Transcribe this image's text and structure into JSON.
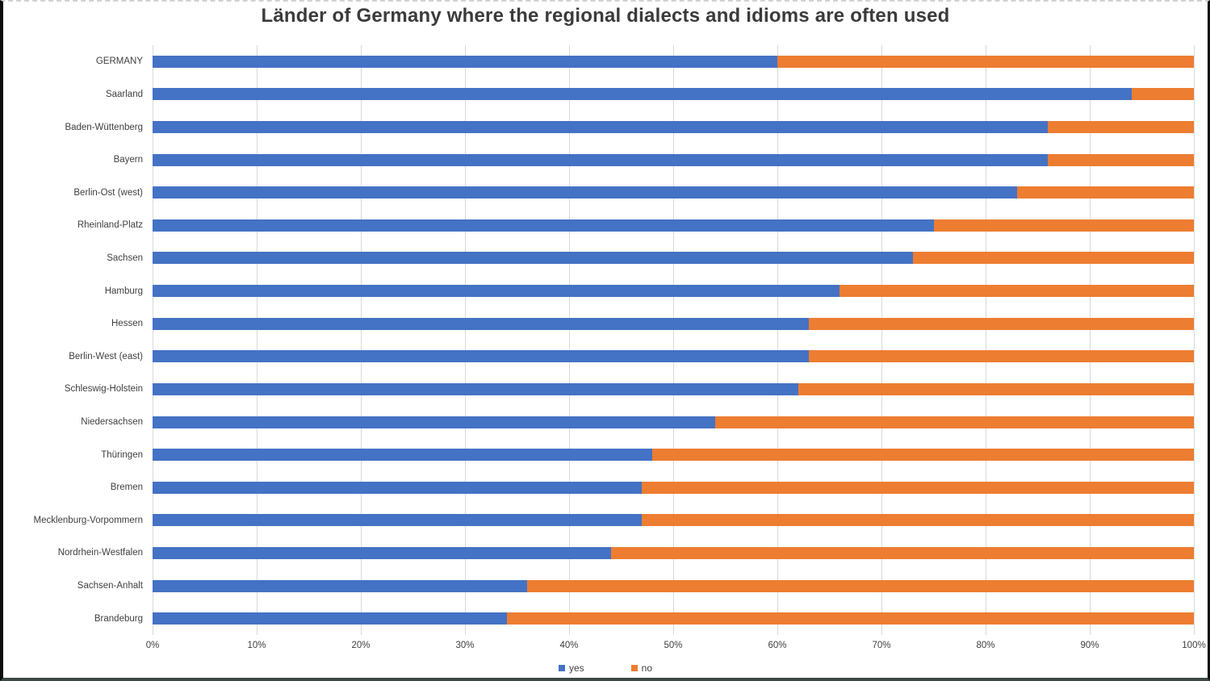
{
  "title": "Länder of Germany where the regional dialects and idioms are often used",
  "colors": {
    "yes": "#4472C4",
    "no": "#ED7D31",
    "gridline": "#D9D9D9",
    "title_text": "#3B3B3B",
    "axis_text": "#3F3F3F"
  },
  "chart_data": {
    "type": "bar",
    "orientation": "horizontal",
    "stacked": true,
    "title": "Länder of Germany where the regional dialects and idioms are often used",
    "categories": [
      "GERMANY",
      "Saarland",
      "Baden-Wüttenberg",
      "Bayern",
      "Berlin-Ost (west)",
      "Rheinland-Platz",
      "Sachsen",
      "Hamburg",
      "Hessen",
      "Berlin-West (east)",
      "Schleswig-Holstein",
      "Niedersachsen",
      "Thüringen",
      "Bremen",
      "Mecklenburg-Vorpommern",
      "Nordrhein-Westfalen",
      "Sachsen-Anhalt",
      "Brandeburg"
    ],
    "series": [
      {
        "name": "yes",
        "color": "#4472C4",
        "values": [
          60,
          94,
          86,
          86,
          83,
          75,
          73,
          66,
          63,
          63,
          62,
          54,
          48,
          47,
          47,
          44,
          36,
          34
        ]
      },
      {
        "name": "no",
        "color": "#ED7D31",
        "values": [
          40,
          6,
          14,
          14,
          17,
          25,
          27,
          34,
          37,
          37,
          38,
          46,
          52,
          53,
          53,
          56,
          64,
          66
        ]
      }
    ],
    "x_ticks": [
      "0%",
      "10%",
      "20%",
      "30%",
      "40%",
      "50%",
      "60%",
      "70%",
      "80%",
      "90%",
      "100%"
    ],
    "xlim": [
      0,
      100
    ],
    "grid": "vertical",
    "legend_position": "bottom"
  }
}
